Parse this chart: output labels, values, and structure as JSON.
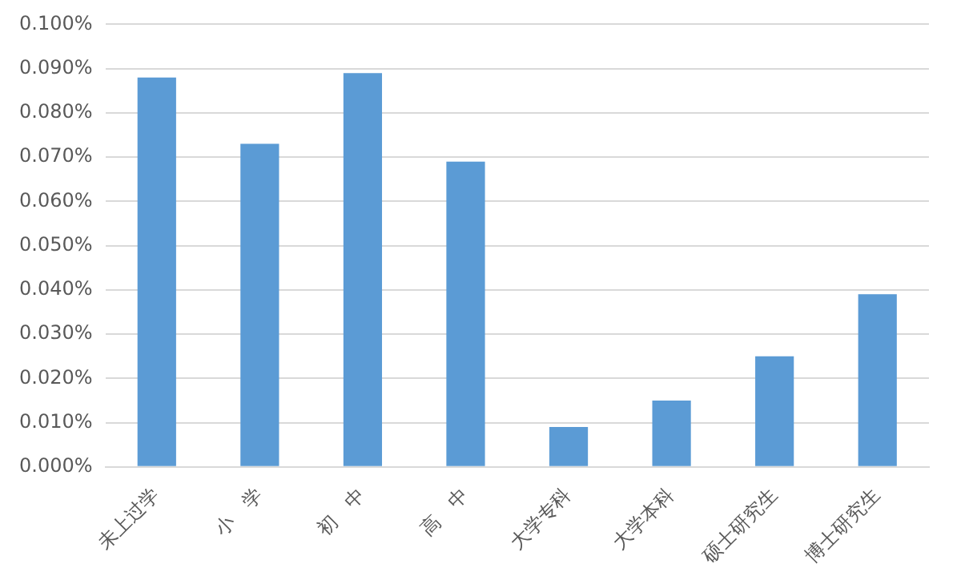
{
  "chart_data": {
    "type": "bar",
    "categories": [
      "未上过学",
      "小　学",
      "初　中",
      "高　中",
      "大学专科",
      "大学本科",
      "硕士研究生",
      "博士研究生"
    ],
    "values": [
      0.088,
      0.073,
      0.089,
      0.069,
      0.009,
      0.015,
      0.025,
      0.039
    ],
    "color": "#5b9bd5",
    "ylim": [
      0,
      0.1
    ],
    "yticks": [
      {
        "value": 0,
        "label": "0.000%"
      },
      {
        "value": 0.01,
        "label": "0.010%"
      },
      {
        "value": 0.02,
        "label": "0.020%"
      },
      {
        "value": 0.03,
        "label": "0.030%"
      },
      {
        "value": 0.04,
        "label": "0.040%"
      },
      {
        "value": 0.05,
        "label": "0.050%"
      },
      {
        "value": 0.06,
        "label": "0.060%"
      },
      {
        "value": 0.07,
        "label": "0.070%"
      },
      {
        "value": 0.08,
        "label": "0.080%"
      },
      {
        "value": 0.09,
        "label": "0.090%"
      },
      {
        "value": 0.1,
        "label": "0.100%"
      }
    ],
    "grid": "y"
  }
}
